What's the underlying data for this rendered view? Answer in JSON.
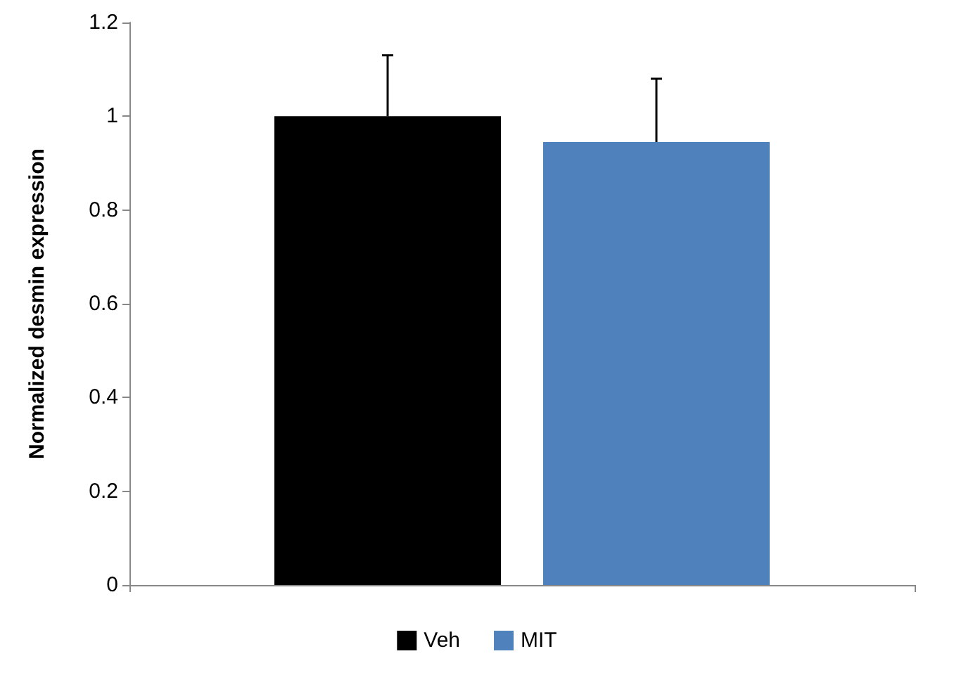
{
  "chart_data": {
    "type": "bar",
    "ylabel": "Normalized desmin expression",
    "categories": [
      null
    ],
    "series": [
      {
        "name": "Veh",
        "color": "#000000",
        "values": [
          1.0
        ],
        "errors": [
          [
            1.0,
            1.13
          ]
        ]
      },
      {
        "name": "MIT",
        "color": "#4f81bd",
        "values": [
          0.945
        ],
        "errors": [
          [
            0.945,
            1.08
          ]
        ]
      }
    ],
    "ylim": [
      0,
      1.2
    ],
    "yticks": [
      0,
      0.2,
      0.4,
      0.6,
      0.8,
      1,
      1.2
    ],
    "grid": false,
    "legend": "bottom"
  }
}
